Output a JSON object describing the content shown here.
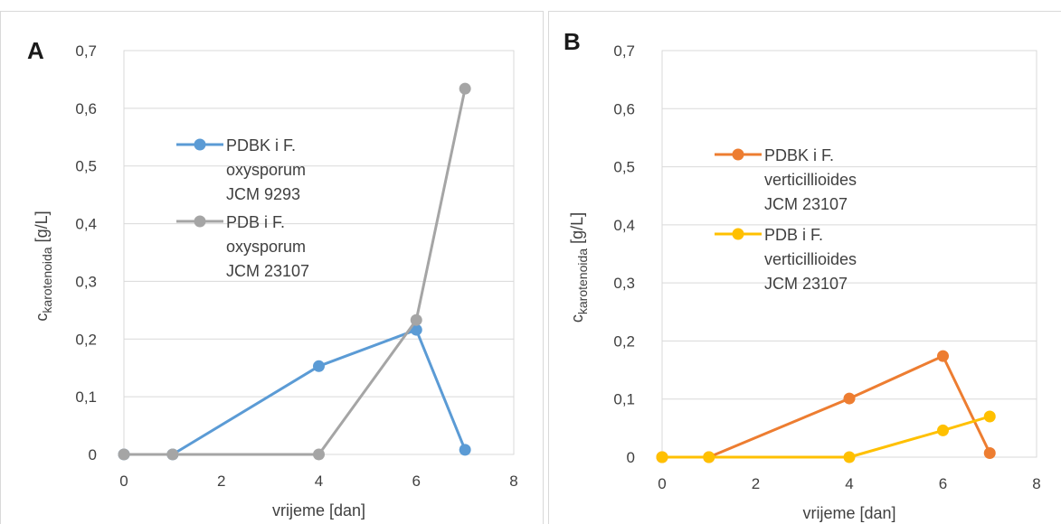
{
  "chart_data": [
    {
      "type": "line",
      "panel_label": "A",
      "xlabel": "vrijeme [dan]",
      "ylabel": {
        "base": "c",
        "subscript": "karotenoida",
        "suffix": " [g/L]"
      },
      "xlim": [
        0,
        8
      ],
      "ylim": [
        0,
        0.7
      ],
      "xticks": [
        "0",
        "2",
        "4",
        "6",
        "8"
      ],
      "yticks": [
        "0",
        "0,1",
        "0,2",
        "0,3",
        "0,4",
        "0,5",
        "0,6",
        "0,7"
      ],
      "grid": true,
      "legend_position": "top-left",
      "series": [
        {
          "name": [
            "PDBK i F.",
            "oxysporum",
            "JCM 9293"
          ],
          "color": "#5b9bd5",
          "x": [
            0,
            1,
            4,
            6,
            7
          ],
          "y": [
            0,
            0,
            0.153,
            0.216,
            0.008
          ]
        },
        {
          "name": [
            "PDB i F.",
            "oxysporum",
            "JCM 23107"
          ],
          "color": "#a5a5a5",
          "x": [
            0,
            1,
            4,
            6,
            7
          ],
          "y": [
            0,
            0,
            0,
            0.233,
            0.634
          ]
        }
      ]
    },
    {
      "type": "line",
      "panel_label": "B",
      "xlabel": "vrijeme [dan]",
      "ylabel": {
        "base": "c",
        "subscript": "karotenoida",
        "suffix": " [g/L]"
      },
      "xlim": [
        0,
        8
      ],
      "ylim": [
        0,
        0.7
      ],
      "xticks": [
        "0",
        "2",
        "4",
        "6",
        "8"
      ],
      "yticks": [
        "0",
        "0,1",
        "0,2",
        "0,3",
        "0,4",
        "0,5",
        "0,6",
        "0,7"
      ],
      "grid": true,
      "legend_position": "top-left",
      "series": [
        {
          "name": [
            "PDBK i F.",
            "verticillioides",
            "JCM 23107"
          ],
          "color": "#ed7d31",
          "x": [
            0,
            1,
            4,
            6,
            7
          ],
          "y": [
            0,
            0,
            0.101,
            0.174,
            0.007
          ]
        },
        {
          "name": [
            "PDB i F.",
            "verticillioides",
            "JCM 23107"
          ],
          "color": "#ffc000",
          "x": [
            0,
            1,
            4,
            6,
            7
          ],
          "y": [
            0,
            0,
            0,
            0.046,
            0.07
          ]
        }
      ]
    }
  ]
}
